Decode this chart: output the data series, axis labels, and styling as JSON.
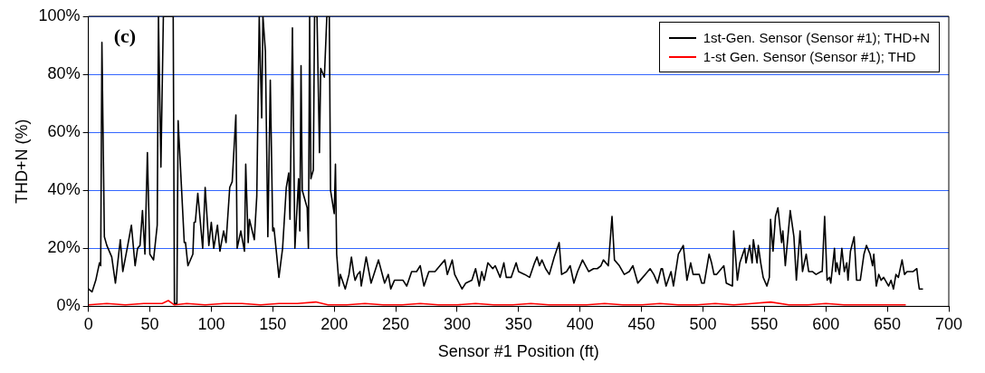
{
  "chart_data": {
    "type": "line",
    "xlabel": "Sensor #1 Position (ft)",
    "ylabel": "THD+N (%)",
    "annotations": [
      "(c)"
    ],
    "xlim": [
      0,
      700
    ],
    "xticks": [
      0,
      50,
      100,
      150,
      200,
      250,
      300,
      350,
      400,
      450,
      500,
      550,
      600,
      650,
      700
    ],
    "ylim": [
      0,
      100
    ],
    "yticks": [
      {
        "value": 0,
        "label": "0%"
      },
      {
        "value": 20,
        "label": "20%"
      },
      {
        "value": 40,
        "label": "40%"
      },
      {
        "value": 60,
        "label": "60%"
      },
      {
        "value": 80,
        "label": "80%"
      },
      {
        "value": 100,
        "label": "100%"
      }
    ],
    "grid": "y",
    "legend": "top right",
    "marker": "none",
    "line_style": "solid",
    "series": [
      {
        "name": "1st-Gen. Sensor (Sensor #1); THD+N",
        "color": "#000000",
        "x": [
          0,
          3,
          6,
          9,
          10,
          11,
          13,
          15,
          19,
          22,
          26,
          28,
          32,
          35,
          38,
          40,
          42,
          44,
          46,
          48,
          50,
          53,
          56,
          57,
          59,
          61,
          69,
          70,
          72,
          73,
          78,
          79,
          81,
          85,
          86,
          87,
          89,
          93,
          95,
          98,
          100,
          102,
          105,
          107,
          110,
          112,
          115,
          117,
          120,
          121,
          124,
          127,
          128,
          130,
          131,
          135,
          137,
          139,
          141,
          142,
          144,
          146,
          148,
          150,
          151,
          155,
          158,
          161,
          163,
          164,
          166,
          168,
          171,
          172,
          173,
          174,
          178,
          179,
          180,
          181,
          183,
          184,
          186,
          188,
          189,
          192,
          194,
          196,
          197,
          200,
          201,
          202,
          204,
          205,
          209,
          212,
          214,
          216,
          217,
          219,
          221,
          222,
          226,
          230,
          236,
          241,
          244,
          246,
          249,
          252,
          256,
          259,
          263,
          267,
          270,
          273,
          277,
          282,
          286,
          290,
          292,
          296,
          298,
          304,
          307,
          312,
          315,
          318,
          320,
          322,
          325,
          329,
          331,
          335,
          338,
          340,
          344,
          348,
          350,
          355,
          359,
          363,
          365,
          367,
          369,
          372,
          375,
          379,
          383,
          385,
          389,
          392,
          395,
          398,
          402,
          407,
          411,
          414,
          417,
          419,
          423,
          426,
          428,
          432,
          436,
          440,
          443,
          447,
          451,
          453,
          457,
          460,
          463,
          466,
          467,
          470,
          474,
          476,
          480,
          484,
          487,
          490,
          492,
          497,
          499,
          501,
          505,
          507,
          509,
          511,
          517,
          519,
          524,
          525,
          528,
          530,
          534,
          535,
          538,
          540,
          541,
          544,
          545,
          547,
          549,
          552,
          554,
          555,
          557,
          559,
          561,
          564,
          565,
          567,
          571,
          574,
          576,
          579,
          581,
          584,
          586,
          589,
          592,
          596,
          597,
          599,
          601,
          603,
          604,
          607,
          608,
          609,
          611,
          613,
          615,
          617,
          618,
          620,
          623,
          625,
          628,
          631,
          633,
          636,
          638,
          639,
          641,
          643,
          645,
          647,
          651,
          653,
          655,
          657,
          659,
          662,
          664,
          666,
          669,
          671,
          674,
          675,
          676,
          678,
          679
        ],
        "values": [
          6,
          5,
          9,
          15,
          14,
          91,
          24,
          21,
          17,
          8,
          23,
          12,
          21,
          28,
          14,
          20,
          21,
          33,
          18,
          53,
          18,
          16,
          28,
          100,
          48,
          100,
          100,
          1,
          1,
          64,
          22,
          22,
          14,
          18,
          29,
          29,
          39,
          20,
          41,
          21,
          29,
          20,
          28,
          19,
          26,
          22,
          41,
          43,
          66,
          20,
          26,
          19,
          49,
          22,
          30,
          23,
          38,
          100,
          65,
          100,
          88,
          24,
          78,
          26,
          27,
          10,
          20,
          41,
          46,
          30,
          96,
          20,
          44,
          26,
          83,
          40,
          34,
          20,
          100,
          44,
          47,
          100,
          100,
          53,
          82,
          79,
          100,
          100,
          40,
          32,
          49,
          18,
          7,
          11,
          6,
          11,
          17,
          11,
          9,
          11,
          12,
          7,
          17,
          8,
          16,
          8,
          11,
          6,
          9,
          9,
          9,
          7,
          12,
          12,
          14,
          7,
          12,
          12,
          14,
          16,
          11,
          16,
          11,
          6,
          8,
          9,
          13,
          7,
          12,
          9,
          15,
          13,
          14,
          10,
          15,
          10,
          10,
          15,
          12,
          11,
          10,
          15,
          17,
          14,
          16,
          13,
          11,
          17,
          22,
          11,
          12,
          14,
          8,
          12,
          16,
          12,
          13,
          13,
          14,
          16,
          14,
          31,
          16,
          14,
          11,
          12,
          14,
          8,
          10,
          11,
          13,
          11,
          8,
          13,
          13,
          7,
          12,
          7,
          18,
          21,
          9,
          15,
          11,
          11,
          8,
          8,
          18,
          15,
          11,
          11,
          14,
          8,
          7,
          26,
          9,
          15,
          20,
          15,
          21,
          15,
          23,
          15,
          21,
          15,
          10,
          7,
          10,
          30,
          19,
          31,
          34,
          22,
          26,
          14,
          33,
          24,
          9,
          26,
          12,
          18,
          12,
          12,
          11,
          12,
          12,
          31,
          9,
          10,
          8,
          20,
          12,
          15,
          11,
          20,
          12,
          15,
          9,
          19,
          24,
          9,
          9,
          18,
          21,
          18,
          14,
          18,
          7,
          11,
          9,
          10,
          7,
          9,
          6,
          11,
          10,
          16,
          11,
          12,
          12,
          12,
          13,
          9,
          6,
          6,
          6
        ]
      },
      {
        "name": "1-st Gen. Sensor (Sensor #1); THD",
        "color": "#ff0000",
        "x": [
          0,
          15,
          30,
          45,
          60,
          65,
          70,
          80,
          95,
          110,
          125,
          140,
          155,
          170,
          185,
          195,
          210,
          225,
          240,
          255,
          270,
          285,
          300,
          315,
          330,
          345,
          360,
          375,
          390,
          405,
          420,
          435,
          450,
          465,
          480,
          495,
          510,
          525,
          540,
          555,
          570,
          585,
          600,
          615,
          630,
          645,
          660,
          665
        ],
        "values": [
          0.5,
          1,
          0.5,
          1,
          1,
          2,
          0.5,
          1,
          0.5,
          1,
          1,
          0.5,
          1,
          1,
          1.5,
          0.5,
          0.5,
          1,
          0.5,
          0.5,
          1,
          0.5,
          0.5,
          1,
          0.5,
          0.5,
          1,
          0.5,
          0.5,
          0.5,
          1,
          0.5,
          0.5,
          1,
          0.5,
          0.5,
          1,
          0.5,
          1,
          1.5,
          0.5,
          0.5,
          1,
          0.5,
          0.5,
          0.5,
          0.5,
          0.5
        ]
      }
    ]
  }
}
